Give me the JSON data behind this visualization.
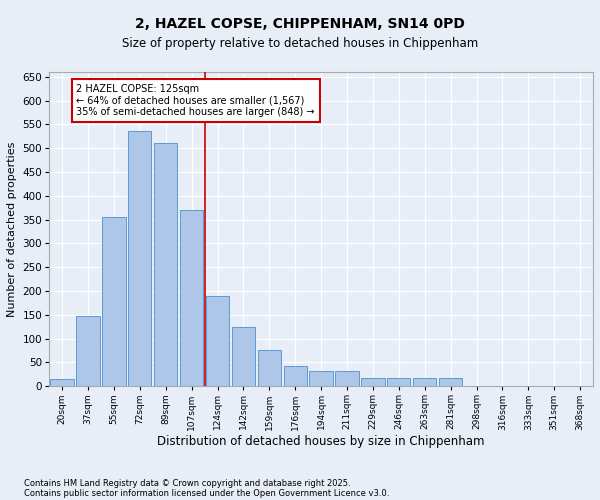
{
  "title1": "2, HAZEL COPSE, CHIPPENHAM, SN14 0PD",
  "title2": "Size of property relative to detached houses in Chippenham",
  "xlabel": "Distribution of detached houses by size in Chippenham",
  "ylabel": "Number of detached properties",
  "categories": [
    "20sqm",
    "37sqm",
    "55sqm",
    "72sqm",
    "89sqm",
    "107sqm",
    "124sqm",
    "142sqm",
    "159sqm",
    "176sqm",
    "194sqm",
    "211sqm",
    "229sqm",
    "246sqm",
    "263sqm",
    "281sqm",
    "298sqm",
    "316sqm",
    "333sqm",
    "351sqm",
    "368sqm"
  ],
  "values": [
    15,
    148,
    355,
    535,
    510,
    370,
    190,
    125,
    75,
    42,
    32,
    32,
    17,
    17,
    17,
    17,
    0,
    0,
    0,
    0,
    0
  ],
  "bar_color": "#aec6e8",
  "bar_edge_color": "#5b9bd5",
  "background_color": "#e8eef7",
  "grid_color": "#ffffff",
  "vline_color": "#cc0000",
  "vline_pos": 5.5,
  "annotation_text": "2 HAZEL COPSE: 125sqm\n← 64% of detached houses are smaller (1,567)\n35% of semi-detached houses are larger (848) →",
  "annotation_box_color": "#ffffff",
  "annotation_box_edge": "#cc0000",
  "footnote1": "Contains HM Land Registry data © Crown copyright and database right 2025.",
  "footnote2": "Contains public sector information licensed under the Open Government Licence v3.0.",
  "ylim": [
    0,
    660
  ],
  "yticks": [
    0,
    50,
    100,
    150,
    200,
    250,
    300,
    350,
    400,
    450,
    500,
    550,
    600,
    650
  ]
}
